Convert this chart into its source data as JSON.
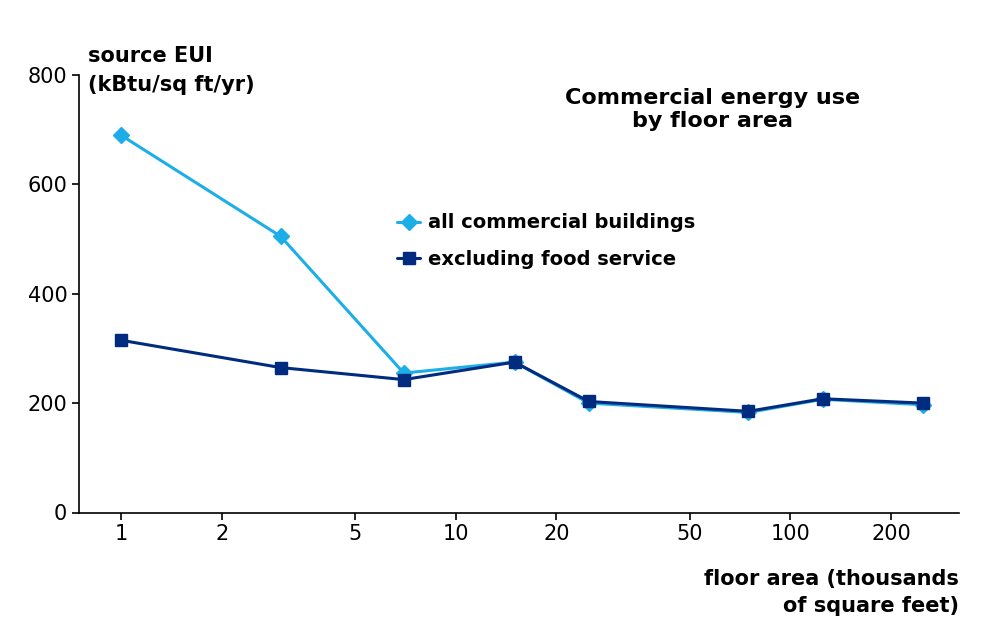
{
  "all_x": [
    1,
    3,
    7,
    15,
    25,
    75,
    125,
    250
  ],
  "all_y": [
    690,
    505,
    255,
    275,
    200,
    183,
    207,
    197
  ],
  "excl_x": [
    1,
    3,
    7,
    15,
    25,
    75,
    125,
    250
  ],
  "excl_y": [
    315,
    265,
    243,
    275,
    203,
    185,
    208,
    200
  ],
  "line_color_all": "#1daee8",
  "line_color_excl": "#002b7f",
  "title": "Commercial energy use\nby floor area",
  "ylabel_line1": "source EUI",
  "ylabel_line2": "(kBtu/sq ft/yr)",
  "xlabel_line1": "floor area (thousands",
  "xlabel_line2": "of square feet)",
  "ylim": [
    0,
    800
  ],
  "yticks": [
    0,
    200,
    400,
    600,
    800
  ],
  "xticks": [
    1,
    2,
    5,
    10,
    20,
    50,
    100,
    200
  ],
  "legend_all": "all commercial buildings",
  "legend_excl": "excluding food service",
  "background_color": "#ffffff"
}
